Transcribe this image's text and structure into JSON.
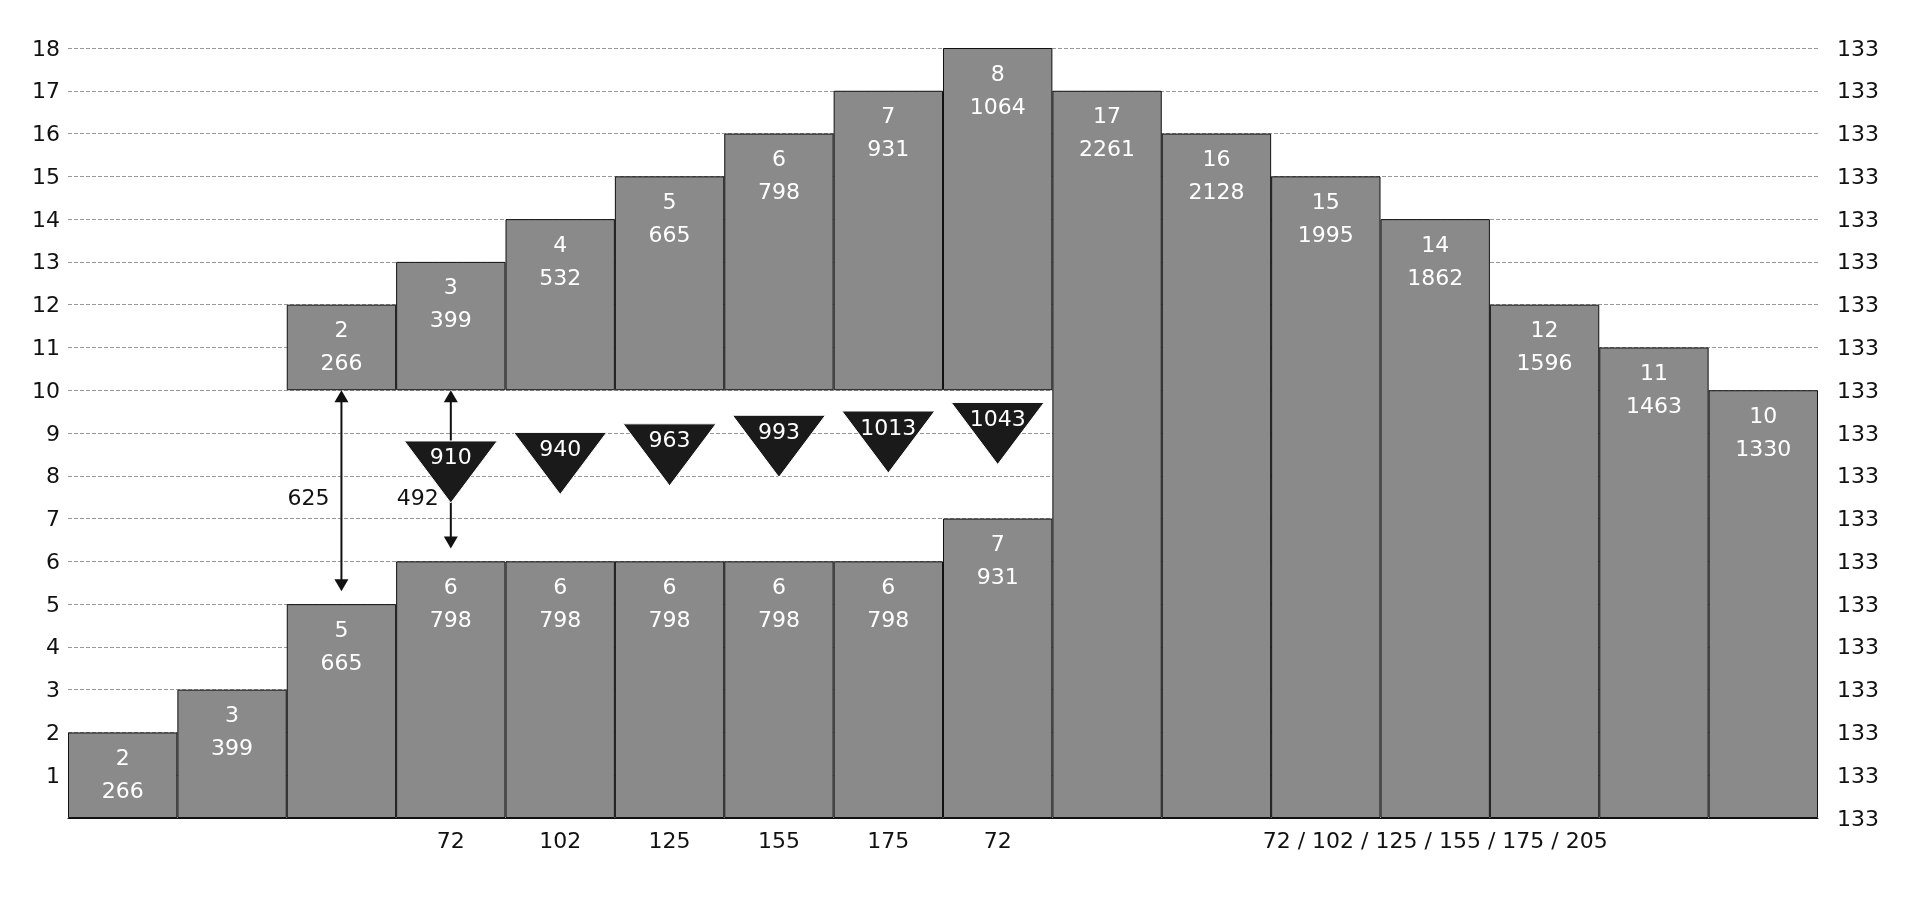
{
  "chart_data": {
    "type": "bar",
    "categories": [
      null,
      null,
      null,
      null,
      null,
      null,
      null,
      null,
      null,
      null,
      null,
      null,
      null,
      null,
      null,
      null
    ],
    "series": [
      {
        "color": "#8a8a8a",
        "values": [
          2,
          3,
          5,
          6,
          6,
          6,
          6,
          6,
          7,
          17,
          16,
          15,
          14,
          12,
          11,
          10
        ]
      },
      {
        "color": "#8a8a8a",
        "values": [
          null,
          null,
          2,
          3,
          4,
          5,
          6,
          7,
          8,
          null,
          null,
          null,
          null,
          null,
          null,
          null
        ],
        "base": [
          null,
          null,
          10,
          10,
          10,
          10,
          10,
          10,
          10,
          null,
          null,
          null,
          null,
          null,
          null,
          null
        ]
      }
    ],
    "data_labels": true,
    "ylim": [
      0,
      18
    ],
    "yticks": [
      1,
      2,
      3,
      4,
      5,
      6,
      7,
      8,
      9,
      10,
      11,
      12,
      13,
      14,
      15,
      16,
      17,
      18
    ],
    "grid": "y",
    "annotations": [
      "625",
      "492",
      "910",
      "940",
      "963",
      "993",
      "1013",
      "1043",
      "72",
      "102",
      "125",
      "155",
      "175",
      "72",
      "72 / 102 / 125 / 155 / 175 / 205",
      "266",
      "399",
      "665",
      "798",
      "798",
      "798",
      "798",
      "798",
      "931",
      "2261",
      "2128",
      "1995",
      "1862",
      "1596",
      "1463",
      "1330",
      "266",
      "399",
      "532",
      "665",
      "798",
      "931",
      "1064",
      "133",
      "133",
      "133",
      "133",
      "133",
      "133",
      "133",
      "133",
      "133",
      "133",
      "133",
      "133",
      "133",
      "133",
      "133",
      "133",
      "133",
      "133",
      "133"
    ]
  }
}
